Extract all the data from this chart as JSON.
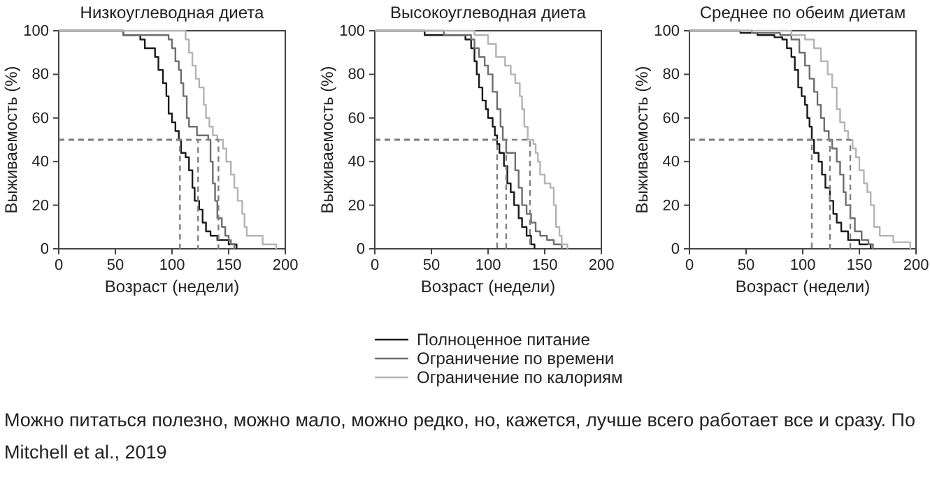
{
  "chart_data": [
    {
      "type": "step",
      "title": "Низкоуглеводная диета",
      "xlabel": "Возраст (недели)",
      "ylabel": "Выживаемость (%)",
      "xlim": [
        0,
        200
      ],
      "ylim": [
        0,
        100
      ],
      "xticks": [
        0,
        50,
        100,
        150,
        200
      ],
      "yticks": [
        0,
        20,
        40,
        60,
        80,
        100
      ],
      "grid": false,
      "series": [
        {
          "color": "#1a1a1a",
          "x": [
            0,
            57,
            72,
            76,
            85,
            88,
            92,
            95,
            97,
            100,
            103,
            106,
            108,
            112,
            115,
            118,
            120,
            124,
            127,
            130,
            134,
            140,
            150,
            157
          ],
          "values": [
            100,
            98,
            96,
            92,
            88,
            82,
            76,
            70,
            62,
            58,
            54,
            50,
            44,
            42,
            36,
            28,
            22,
            18,
            12,
            8,
            6,
            4,
            2,
            0
          ]
        },
        {
          "color": "#6e6e6e",
          "x": [
            0,
            57,
            97,
            100,
            103,
            106,
            108,
            110,
            113,
            115,
            122,
            132,
            134,
            136,
            138,
            140,
            144,
            147,
            150,
            152,
            155
          ],
          "values": [
            100,
            98,
            96,
            92,
            86,
            82,
            76,
            70,
            60,
            56,
            52,
            50,
            40,
            30,
            22,
            14,
            10,
            6,
            4,
            2,
            0
          ]
        },
        {
          "color": "#b4b4b4",
          "x": [
            0,
            98,
            112,
            115,
            118,
            121,
            124,
            128,
            130,
            133,
            136,
            140,
            145,
            148,
            152,
            155,
            158,
            162,
            164,
            166,
            180,
            192
          ],
          "values": [
            100,
            100,
            96,
            90,
            84,
            78,
            74,
            66,
            60,
            56,
            52,
            50,
            46,
            40,
            34,
            28,
            22,
            16,
            10,
            6,
            2,
            0
          ]
        },
        {
          "type": "line",
          "line_style": "dashed",
          "color": "#808080",
          "x": [
            0,
            107,
            107
          ],
          "values": [
            50,
            50,
            0
          ]
        },
        {
          "type": "line",
          "line_style": "dashed",
          "color": "#808080",
          "x": [
            0,
            123,
            123
          ],
          "values": [
            50,
            50,
            0
          ]
        },
        {
          "type": "line",
          "line_style": "dashed",
          "color": "#808080",
          "x": [
            0,
            141,
            141
          ],
          "values": [
            50,
            50,
            0
          ]
        }
      ]
    },
    {
      "type": "step",
      "title": "Высокоуглеводная диета",
      "xlabel": "Возраст (недели)",
      "ylabel": "Выживаемость (%)",
      "xlim": [
        0,
        200
      ],
      "ylim": [
        0,
        100
      ],
      "xticks": [
        0,
        50,
        100,
        150,
        200
      ],
      "yticks": [
        0,
        20,
        40,
        60,
        80,
        100
      ],
      "grid": false,
      "legend": "bottom",
      "annotations": [
        "Можно питаться полезно, можно мало, можно редко, но, кажется, лучше всего работает все и сразу. По Mitchell et al., 2019"
      ],
      "series": [
        {
          "name": "Полноценное питание",
          "color": "#1a1a1a",
          "x": [
            0,
            44,
            80,
            85,
            88,
            90,
            92,
            95,
            98,
            100,
            104,
            106,
            108,
            110,
            114,
            117,
            120,
            123,
            127,
            130,
            134,
            138,
            141
          ],
          "values": [
            100,
            98,
            96,
            92,
            86,
            80,
            74,
            68,
            64,
            60,
            56,
            52,
            48,
            44,
            38,
            30,
            26,
            20,
            14,
            10,
            6,
            2,
            0
          ]
        },
        {
          "name": "Ограничение по времени",
          "color": "#6e6e6e",
          "x": [
            0,
            61,
            85,
            88,
            92,
            97,
            100,
            104,
            108,
            111,
            113,
            116,
            124,
            127,
            130,
            134,
            138,
            142,
            146,
            152,
            158,
            165
          ],
          "values": [
            100,
            98,
            96,
            92,
            88,
            84,
            80,
            72,
            64,
            56,
            50,
            44,
            36,
            28,
            20,
            16,
            12,
            8,
            6,
            4,
            2,
            0
          ]
        },
        {
          "name": "Ограничение по калориям",
          "color": "#b4b4b4",
          "x": [
            0,
            88,
            100,
            107,
            115,
            120,
            124,
            128,
            130,
            132,
            135,
            140,
            142,
            144,
            146,
            150,
            155,
            158,
            160,
            163,
            165,
            170
          ],
          "values": [
            100,
            98,
            94,
            88,
            84,
            80,
            76,
            70,
            64,
            56,
            50,
            48,
            44,
            40,
            34,
            30,
            28,
            20,
            10,
            6,
            2,
            0
          ]
        },
        {
          "type": "line",
          "line_style": "dashed",
          "color": "#808080",
          "x": [
            0,
            108,
            108
          ],
          "values": [
            50,
            50,
            0
          ]
        },
        {
          "type": "line",
          "line_style": "dashed",
          "color": "#808080",
          "x": [
            0,
            116,
            116
          ],
          "values": [
            50,
            50,
            0
          ]
        },
        {
          "type": "line",
          "line_style": "dashed",
          "color": "#808080",
          "x": [
            0,
            137,
            137
          ],
          "values": [
            50,
            50,
            0
          ]
        }
      ]
    },
    {
      "type": "step",
      "title": "Среднее по обеим диетам",
      "xlabel": "Возраст (недели)",
      "ylabel": "Выживаемость (%)",
      "xlim": [
        0,
        200
      ],
      "ylim": [
        0,
        100
      ],
      "xticks": [
        0,
        50,
        100,
        150,
        200
      ],
      "yticks": [
        0,
        20,
        40,
        60,
        80,
        100
      ],
      "grid": false,
      "series": [
        {
          "color": "#1a1a1a",
          "x": [
            0,
            45,
            60,
            75,
            82,
            86,
            90,
            93,
            96,
            99,
            102,
            104,
            106,
            108,
            110,
            114,
            117,
            120,
            124,
            127,
            130,
            134,
            140,
            150,
            160
          ],
          "values": [
            100,
            99,
            98,
            97,
            96,
            92,
            88,
            82,
            74,
            70,
            66,
            60,
            56,
            50,
            44,
            40,
            34,
            28,
            22,
            16,
            12,
            8,
            4,
            2,
            0
          ]
        },
        {
          "color": "#6e6e6e",
          "x": [
            0,
            55,
            80,
            90,
            97,
            102,
            106,
            110,
            113,
            116,
            119,
            123,
            126,
            130,
            133,
            136,
            138,
            142,
            146,
            152,
            158,
            162
          ],
          "values": [
            100,
            99,
            98,
            96,
            90,
            84,
            78,
            72,
            66,
            60,
            54,
            50,
            46,
            40,
            34,
            26,
            20,
            14,
            8,
            4,
            2,
            0
          ]
        },
        {
          "color": "#b4b4b4",
          "x": [
            0,
            90,
            102,
            110,
            116,
            122,
            126,
            130,
            133,
            137,
            140,
            144,
            147,
            150,
            154,
            157,
            160,
            163,
            168,
            180,
            195
          ],
          "values": [
            100,
            98,
            96,
            92,
            86,
            80,
            74,
            64,
            58,
            54,
            50,
            46,
            42,
            36,
            30,
            26,
            20,
            10,
            6,
            3,
            0
          ]
        },
        {
          "type": "line",
          "line_style": "dashed",
          "color": "#808080",
          "x": [
            0,
            108,
            108
          ],
          "values": [
            50,
            50,
            0
          ]
        },
        {
          "type": "line",
          "line_style": "dashed",
          "color": "#808080",
          "x": [
            0,
            124,
            124
          ],
          "values": [
            50,
            50,
            0
          ]
        },
        {
          "type": "line",
          "line_style": "dashed",
          "color": "#808080",
          "x": [
            0,
            142,
            142
          ],
          "values": [
            50,
            50,
            0
          ]
        }
      ]
    }
  ]
}
